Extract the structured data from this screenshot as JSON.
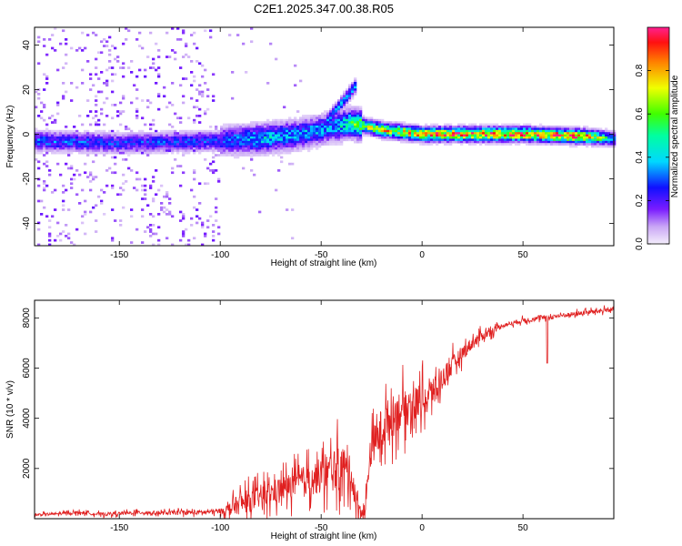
{
  "chart_data": [
    {
      "type": "heatmap",
      "title": "C2E1.2025.347.00.38.R05",
      "xlabel": "Height of straight line (km)",
      "ylabel": "Frequency (Hz)",
      "xlim": [
        -192,
        95
      ],
      "ylim": [
        -50,
        48
      ],
      "xticks": [
        -150,
        -100,
        -50,
        0,
        50
      ],
      "yticks": [
        -40,
        -20,
        0,
        20,
        40
      ],
      "colorbar": {
        "label": "Normalized spectral amplitude",
        "range": [
          0,
          1
        ],
        "ticks": [
          0.0,
          0.2,
          0.4,
          0.6,
          0.8
        ]
      },
      "ridge": {
        "description_points_x": [
          -190,
          -150,
          -100,
          -80,
          -60,
          -45,
          -35,
          -30,
          -20,
          -10,
          0,
          20,
          50,
          80,
          95
        ],
        "center_freq": [
          -3,
          -4,
          -3,
          -2,
          0,
          3,
          5,
          4,
          2,
          1,
          0,
          0,
          0,
          -1,
          -2
        ],
        "amplitude": [
          0.35,
          0.3,
          0.3,
          0.45,
          0.4,
          0.4,
          0.55,
          0.7,
          0.8,
          0.85,
          0.9,
          0.95,
          0.95,
          0.95,
          0.4
        ]
      }
    },
    {
      "type": "line",
      "title": "",
      "xlabel": "Height of straight line (km)",
      "ylabel": "SNR (10 * v/v)",
      "xlim": [
        -192,
        95
      ],
      "ylim": [
        0,
        8700
      ],
      "xticks": [
        -150,
        -100,
        -50,
        0,
        50
      ],
      "yticks": [
        2000,
        4000,
        6000,
        8000
      ],
      "series": [
        {
          "name": "SNR",
          "color": "#e02020",
          "x": [
            -192,
            -180,
            -170,
            -160,
            -150,
            -140,
            -130,
            -120,
            -110,
            -100,
            -95,
            -90,
            -85,
            -80,
            -75,
            -70,
            -65,
            -60,
            -55,
            -50,
            -45,
            -40,
            -35,
            -32,
            -30,
            -28,
            -26,
            -24,
            -22,
            -20,
            -18,
            -16,
            -14,
            -12,
            -10,
            -8,
            -6,
            -4,
            -2,
            0,
            2,
            4,
            6,
            8,
            10,
            12,
            14,
            16,
            18,
            20,
            25,
            30,
            35,
            40,
            45,
            50,
            55,
            60,
            65,
            70,
            75,
            80,
            85,
            90,
            95
          ],
          "y": [
            150,
            200,
            250,
            180,
            200,
            250,
            220,
            250,
            250,
            300,
            400,
            600,
            700,
            900,
            1000,
            1200,
            1300,
            1500,
            1600,
            1700,
            1900,
            2000,
            1800,
            400,
            300,
            250,
            2600,
            3000,
            3200,
            3600,
            3800,
            4000,
            4100,
            4300,
            4400,
            4300,
            4600,
            4500,
            4700,
            4800,
            4700,
            5000,
            5100,
            5200,
            5600,
            5800,
            6000,
            6200,
            6400,
            6600,
            7000,
            7300,
            7500,
            7700,
            7800,
            7900,
            7950,
            8000,
            8050,
            8100,
            8150,
            8200,
            8250,
            8300,
            8350
          ],
          "noise_amplitude_by_x": [
            [
              -192,
              80
            ],
            [
              -100,
              150
            ],
            [
              -90,
              700
            ],
            [
              -60,
              900
            ],
            [
              -40,
              1500
            ],
            [
              -30,
              600
            ],
            [
              -20,
              1500
            ],
            [
              0,
              1100
            ],
            [
              20,
              500
            ],
            [
              40,
              150
            ],
            [
              95,
              150
            ]
          ]
        }
      ]
    }
  ]
}
